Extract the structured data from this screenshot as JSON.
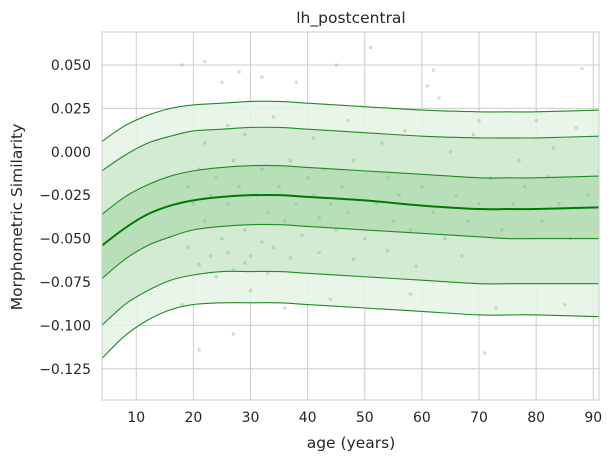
{
  "chart_data": {
    "type": "line",
    "title": "lh_postcentral",
    "xlabel": "age (years)",
    "ylabel": "Morphometric Similarity",
    "xlim": [
      4,
      91
    ],
    "ylim": [
      -0.143,
      0.069
    ],
    "x_ticks": [
      10,
      20,
      30,
      40,
      50,
      60,
      70,
      80,
      90
    ],
    "x_tick_labels": [
      "10",
      "20",
      "30",
      "40",
      "50",
      "60",
      "70",
      "80",
      "90"
    ],
    "y_ticks": [
      0.05,
      0.025,
      0.0,
      -0.025,
      -0.05,
      -0.075,
      -0.1,
      -0.125
    ],
    "y_tick_labels": [
      "0.050",
      "0.025",
      "0.000",
      "−0.025",
      "−0.050",
      "−0.075",
      "−0.100",
      "−0.125"
    ],
    "grid": true,
    "colors": {
      "line": "#228b22",
      "median": "#007a00",
      "band_inner": "#b4ddb4",
      "band_mid": "#cfe8cf",
      "band_outer": "#e5f3e5",
      "scatter": "#66bb66",
      "grid": "#cccccc",
      "background": "#ffffff"
    },
    "x": [
      4,
      8,
      12,
      16,
      20,
      25,
      30,
      35,
      40,
      50,
      60,
      70,
      75,
      80,
      91
    ],
    "series": [
      {
        "values": [
          -0.119,
          -0.106,
          -0.097,
          -0.091,
          -0.088,
          -0.087,
          -0.087,
          -0.087,
          -0.088,
          -0.09,
          -0.092,
          -0.094,
          -0.094,
          -0.094,
          -0.095
        ]
      },
      {
        "values": [
          -0.1,
          -0.088,
          -0.08,
          -0.074,
          -0.071,
          -0.069,
          -0.069,
          -0.069,
          -0.07,
          -0.072,
          -0.074,
          -0.076,
          -0.076,
          -0.076,
          -0.076
        ]
      },
      {
        "values": [
          -0.073,
          -0.062,
          -0.054,
          -0.049,
          -0.045,
          -0.043,
          -0.042,
          -0.042,
          -0.043,
          -0.045,
          -0.047,
          -0.049,
          -0.05,
          -0.05,
          -0.05
        ]
      },
      {
        "values": [
          -0.054,
          -0.044,
          -0.036,
          -0.031,
          -0.028,
          -0.026,
          -0.025,
          -0.025,
          -0.026,
          -0.028,
          -0.031,
          -0.033,
          -0.033,
          -0.033,
          -0.032
        ]
      },
      {
        "values": [
          -0.036,
          -0.026,
          -0.019,
          -0.014,
          -0.011,
          -0.009,
          -0.008,
          -0.008,
          -0.009,
          -0.011,
          -0.013,
          -0.015,
          -0.015,
          -0.015,
          -0.014
        ]
      },
      {
        "values": [
          -0.011,
          -0.002,
          0.005,
          0.009,
          0.012,
          0.013,
          0.014,
          0.014,
          0.013,
          0.011,
          0.009,
          0.008,
          0.008,
          0.008,
          0.009
        ]
      },
      {
        "values": [
          0.006,
          0.015,
          0.021,
          0.025,
          0.027,
          0.028,
          0.029,
          0.029,
          0.028,
          0.026,
          0.024,
          0.023,
          0.023,
          0.023,
          0.024
        ]
      }
    ],
    "scatter_points": [
      [
        18,
        0.05
      ],
      [
        22,
        0.052
      ],
      [
        25,
        0.04
      ],
      [
        28,
        0.046
      ],
      [
        32,
        0.043
      ],
      [
        38,
        0.04
      ],
      [
        45,
        0.05
      ],
      [
        51,
        0.06
      ],
      [
        62,
        0.047
      ],
      [
        61,
        0.038
      ],
      [
        63,
        0.031
      ],
      [
        70,
        0.018
      ],
      [
        80,
        0.018
      ],
      [
        88,
        0.048
      ],
      [
        87,
        0.014
      ],
      [
        82,
        -0.014
      ],
      [
        19,
        -0.02
      ],
      [
        20,
        -0.03
      ],
      [
        21,
        -0.01
      ],
      [
        22,
        -0.04
      ],
      [
        23,
        -0.025
      ],
      [
        24,
        -0.015
      ],
      [
        25,
        -0.05
      ],
      [
        26,
        -0.03
      ],
      [
        27,
        -0.005
      ],
      [
        28,
        -0.02
      ],
      [
        29,
        -0.045
      ],
      [
        30,
        -0.06
      ],
      [
        31,
        -0.025
      ],
      [
        32,
        -0.01
      ],
      [
        33,
        -0.035
      ],
      [
        34,
        -0.055
      ],
      [
        35,
        -0.02
      ],
      [
        36,
        -0.04
      ],
      [
        37,
        -0.005
      ],
      [
        38,
        -0.03
      ],
      [
        39,
        -0.048
      ],
      [
        40,
        -0.015
      ],
      [
        41,
        -0.025
      ],
      [
        42,
        -0.038
      ],
      [
        43,
        -0.01
      ],
      [
        44,
        -0.03
      ],
      [
        45,
        -0.045
      ],
      [
        46,
        -0.02
      ],
      [
        47,
        -0.035
      ],
      [
        48,
        -0.005
      ],
      [
        49,
        -0.028
      ],
      [
        50,
        -0.05
      ],
      [
        52,
        -0.03
      ],
      [
        54,
        -0.015
      ],
      [
        55,
        -0.04
      ],
      [
        56,
        -0.025
      ],
      [
        58,
        -0.045
      ],
      [
        60,
        -0.02
      ],
      [
        62,
        -0.035
      ],
      [
        64,
        -0.05
      ],
      [
        66,
        -0.025
      ],
      [
        68,
        -0.04
      ],
      [
        70,
        -0.03
      ],
      [
        72,
        -0.015
      ],
      [
        74,
        -0.045
      ],
      [
        76,
        -0.03
      ],
      [
        78,
        -0.02
      ],
      [
        81,
        -0.04
      ],
      [
        84,
        -0.03
      ],
      [
        86,
        -0.05
      ],
      [
        89,
        -0.025
      ],
      [
        21,
        -0.065
      ],
      [
        24,
        -0.072
      ],
      [
        27,
        -0.068
      ],
      [
        30,
        -0.08
      ],
      [
        33,
        -0.07
      ],
      [
        18,
        -0.088
      ],
      [
        21,
        -0.114
      ],
      [
        27,
        -0.105
      ],
      [
        36,
        -0.09
      ],
      [
        44,
        -0.085
      ],
      [
        58,
        -0.082
      ],
      [
        71,
        -0.116
      ],
      [
        73,
        -0.09
      ],
      [
        85,
        -0.088
      ],
      [
        22,
        0.005
      ],
      [
        26,
        0.015
      ],
      [
        29,
        0.01
      ],
      [
        34,
        0.02
      ],
      [
        41,
        0.008
      ],
      [
        47,
        0.018
      ],
      [
        53,
        0.005
      ],
      [
        57,
        0.012
      ],
      [
        65,
        0.0
      ],
      [
        69,
        0.01
      ],
      [
        77,
        -0.005
      ],
      [
        83,
        0.002
      ],
      [
        19,
        -0.055
      ],
      [
        23,
        -0.06
      ],
      [
        26,
        -0.058
      ],
      [
        29,
        -0.064
      ],
      [
        32,
        -0.052
      ],
      [
        37,
        -0.061
      ],
      [
        42,
        -0.058
      ],
      [
        48,
        -0.062
      ],
      [
        54,
        -0.057
      ],
      [
        59,
        -0.066
      ],
      [
        67,
        -0.06
      ]
    ]
  }
}
